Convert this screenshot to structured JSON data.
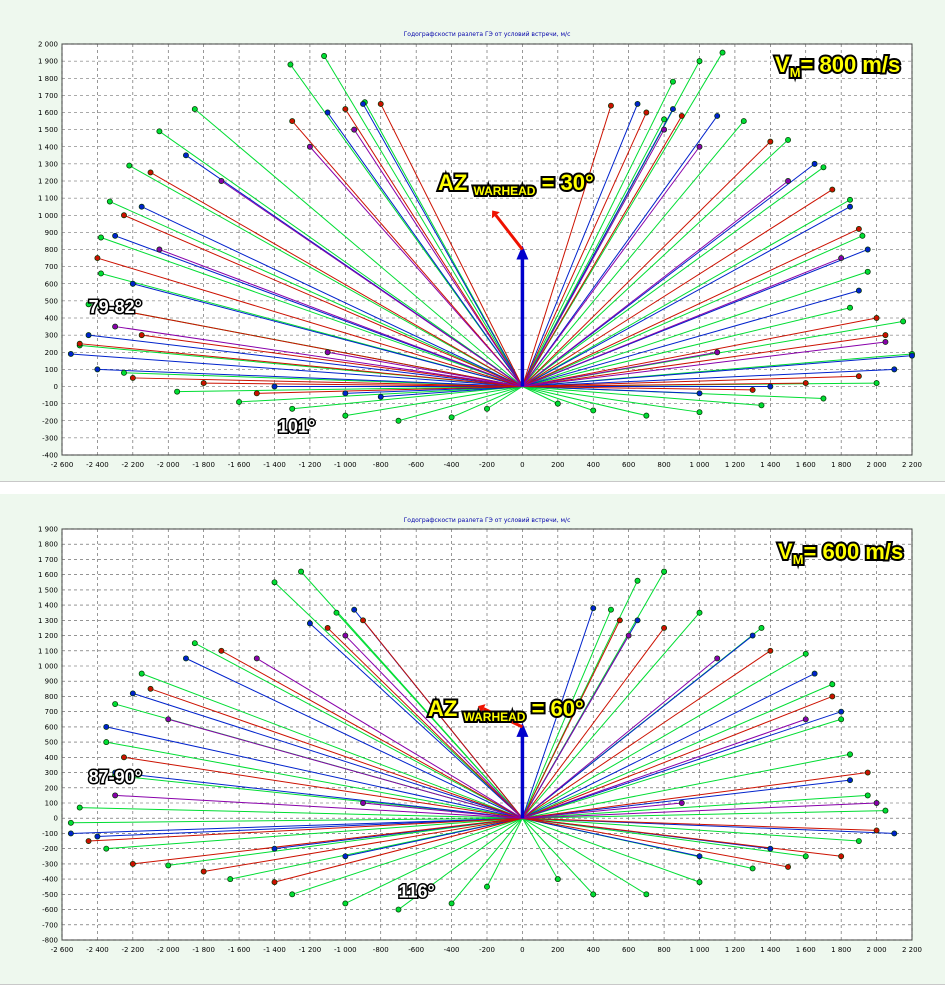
{
  "chart_data": [
    {
      "type": "scatter",
      "title": "Годографскости разлета ГЭ от условий встречи, м/с",
      "xlim": [
        -2600,
        2200
      ],
      "ylim": [
        -400,
        2000
      ],
      "xticks": [
        -2600,
        -2400,
        -2200,
        -2000,
        -1800,
        -1600,
        -1400,
        -1200,
        -1000,
        -800,
        -600,
        -400,
        -200,
        0,
        200,
        400,
        600,
        800,
        1000,
        1200,
        1400,
        1600,
        1800,
        2000,
        2200
      ],
      "yticks": [
        -400,
        -300,
        -200,
        -100,
        0,
        100,
        200,
        300,
        400,
        500,
        600,
        700,
        800,
        900,
        1000,
        1100,
        1200,
        1300,
        1400,
        1500,
        1600,
        1700,
        1800,
        1900,
        2000
      ],
      "grid": true,
      "velocity_label": {
        "prefix": "V",
        "sub": "M",
        "text": "= 800 m/s"
      },
      "azimuth_label": {
        "prefix": "AZ ",
        "sub": "WARHEAD",
        "text": " = 30°"
      },
      "angle_labels": [
        {
          "text": "79-82°",
          "x": -2450,
          "y": 430
        },
        {
          "text": "101°",
          "x": -1380,
          "y": -270
        }
      ],
      "velocity_vector": {
        "x": 0,
        "y": 800,
        "color": "#0000cc"
      },
      "azimuth_vector": {
        "x": -150,
        "y": 1000,
        "from_y": 800,
        "color": "#ee1100"
      },
      "series": [
        {
          "color": "#00dd33",
          "values": [
            [
              -1310,
              1880
            ],
            [
              -1120,
              1930
            ],
            [
              -890,
              1660
            ],
            [
              -1850,
              1620
            ],
            [
              -2050,
              1490
            ],
            [
              -2220,
              1290
            ],
            [
              -2330,
              1080
            ],
            [
              -2380,
              870
            ],
            [
              -2380,
              660
            ],
            [
              -2450,
              480
            ],
            [
              -2500,
              240
            ],
            [
              -2250,
              80
            ],
            [
              -1950,
              -30
            ],
            [
              -1600,
              -90
            ],
            [
              -1300,
              -130
            ],
            [
              -1000,
              -170
            ],
            [
              -700,
              -200
            ],
            [
              -400,
              -180
            ],
            [
              -200,
              -130
            ],
            [
              1130,
              1950
            ],
            [
              1000,
              1900
            ],
            [
              850,
              1780
            ],
            [
              800,
              1560
            ],
            [
              1250,
              1550
            ],
            [
              1500,
              1440
            ],
            [
              1700,
              1280
            ],
            [
              1850,
              1090
            ],
            [
              1920,
              880
            ],
            [
              1950,
              670
            ],
            [
              1850,
              460
            ],
            [
              2150,
              380
            ],
            [
              2200,
              190
            ],
            [
              2000,
              20
            ],
            [
              1700,
              -70
            ],
            [
              1350,
              -110
            ],
            [
              1000,
              -150
            ],
            [
              700,
              -170
            ],
            [
              400,
              -140
            ],
            [
              200,
              -100
            ]
          ]
        },
        {
          "color": "#0022cc",
          "values": [
            [
              -1100,
              1600
            ],
            [
              -900,
              1650
            ],
            [
              -1900,
              1350
            ],
            [
              -2150,
              1050
            ],
            [
              -2300,
              880
            ],
            [
              -2200,
              600
            ],
            [
              -2450,
              300
            ],
            [
              -2550,
              190
            ],
            [
              -2400,
              100
            ],
            [
              -1400,
              0
            ],
            [
              -1000,
              -40
            ],
            [
              -800,
              -60
            ],
            [
              650,
              1650
            ],
            [
              850,
              1620
            ],
            [
              1100,
              1580
            ],
            [
              1650,
              1300
            ],
            [
              1850,
              1050
            ],
            [
              1950,
              800
            ],
            [
              1900,
              560
            ],
            [
              2200,
              180
            ],
            [
              2100,
              100
            ],
            [
              1400,
              0
            ],
            [
              1000,
              -40
            ]
          ]
        },
        {
          "color": "#cc1100",
          "values": [
            [
              -800,
              1650
            ],
            [
              -1000,
              1620
            ],
            [
              -1300,
              1550
            ],
            [
              -2100,
              1250
            ],
            [
              -2250,
              1000
            ],
            [
              -2400,
              750
            ],
            [
              -2300,
              450
            ],
            [
              -2500,
              250
            ],
            [
              -2150,
              300
            ],
            [
              -2200,
              50
            ],
            [
              -1800,
              20
            ],
            [
              -1500,
              -40
            ],
            [
              500,
              1640
            ],
            [
              700,
              1600
            ],
            [
              900,
              1580
            ],
            [
              1400,
              1430
            ],
            [
              1750,
              1150
            ],
            [
              1900,
              920
            ],
            [
              2000,
              400
            ],
            [
              2050,
              300
            ],
            [
              1900,
              60
            ],
            [
              1600,
              20
            ],
            [
              1300,
              -20
            ]
          ]
        },
        {
          "color": "#8800aa",
          "values": [
            [
              -950,
              1500
            ],
            [
              -1200,
              1400
            ],
            [
              -1700,
              1200
            ],
            [
              -2050,
              800
            ],
            [
              -2300,
              350
            ],
            [
              -1100,
              200
            ],
            [
              800,
              1500
            ],
            [
              1000,
              1400
            ],
            [
              1500,
              1200
            ],
            [
              1800,
              750
            ],
            [
              2050,
              260
            ],
            [
              1100,
              200
            ]
          ]
        }
      ]
    },
    {
      "type": "scatter",
      "title": "Годографскости разлета ГЭ от условий встречи, м/с",
      "xlim": [
        -2600,
        2200
      ],
      "ylim": [
        -800,
        1900
      ],
      "xticks": [
        -2600,
        -2400,
        -2200,
        -2000,
        -1800,
        -1600,
        -1400,
        -1200,
        -1000,
        -800,
        -600,
        -400,
        -200,
        0,
        200,
        400,
        600,
        800,
        1000,
        1200,
        1400,
        1600,
        1800,
        2000,
        2200
      ],
      "yticks": [
        -800,
        -700,
        -600,
        -500,
        -400,
        -300,
        -200,
        -100,
        0,
        100,
        200,
        300,
        400,
        500,
        600,
        700,
        800,
        900,
        1000,
        1100,
        1200,
        1300,
        1400,
        1500,
        1600,
        1700,
        1800,
        1900
      ],
      "grid": true,
      "velocity_label": {
        "prefix": "V",
        "sub": "M",
        "text": "= 600 m/s"
      },
      "azimuth_label": {
        "prefix": "AZ ",
        "sub": "WARHEAD",
        "text": " = 60°"
      },
      "angle_labels": [
        {
          "text": "87-90°",
          "x": -2450,
          "y": 230
        },
        {
          "text": "116°",
          "x": -700,
          "y": -520
        }
      ],
      "velocity_vector": {
        "x": 0,
        "y": 600,
        "color": "#0000cc"
      },
      "azimuth_vector": {
        "x": -220,
        "y": 720,
        "from_y": 600,
        "color": "#ee1100"
      },
      "series": [
        {
          "color": "#00dd33",
          "values": [
            [
              -1400,
              1550
            ],
            [
              -1250,
              1620
            ],
            [
              -1050,
              1350
            ],
            [
              -1850,
              1150
            ],
            [
              -2150,
              950
            ],
            [
              -2300,
              750
            ],
            [
              -2350,
              500
            ],
            [
              -2300,
              280
            ],
            [
              -2500,
              70
            ],
            [
              -2550,
              -30
            ],
            [
              -2350,
              -200
            ],
            [
              -2000,
              -310
            ],
            [
              -1650,
              -400
            ],
            [
              -1300,
              -500
            ],
            [
              -1000,
              -560
            ],
            [
              -700,
              -600
            ],
            [
              -400,
              -560
            ],
            [
              -200,
              -450
            ],
            [
              800,
              1620
            ],
            [
              650,
              1560
            ],
            [
              500,
              1370
            ],
            [
              1000,
              1350
            ],
            [
              1350,
              1250
            ],
            [
              1600,
              1080
            ],
            [
              1750,
              880
            ],
            [
              1800,
              650
            ],
            [
              1850,
              420
            ],
            [
              1950,
              150
            ],
            [
              2050,
              50
            ],
            [
              1900,
              -150
            ],
            [
              1600,
              -250
            ],
            [
              1300,
              -330
            ],
            [
              1000,
              -420
            ],
            [
              700,
              -500
            ],
            [
              400,
              -500
            ],
            [
              200,
              -400
            ]
          ]
        },
        {
          "color": "#0022cc",
          "values": [
            [
              -950,
              1370
            ],
            [
              -1200,
              1280
            ],
            [
              -1900,
              1050
            ],
            [
              -2200,
              820
            ],
            [
              -2350,
              600
            ],
            [
              -2300,
              300
            ],
            [
              -2550,
              -100
            ],
            [
              -2400,
              -120
            ],
            [
              -1400,
              -200
            ],
            [
              -1000,
              -250
            ],
            [
              400,
              1380
            ],
            [
              650,
              1300
            ],
            [
              1300,
              1200
            ],
            [
              1650,
              950
            ],
            [
              1800,
              700
            ],
            [
              1850,
              250
            ],
            [
              2100,
              -100
            ],
            [
              1400,
              -200
            ],
            [
              1000,
              -250
            ]
          ]
        },
        {
          "color": "#cc1100",
          "values": [
            [
              -900,
              1300
            ],
            [
              -1100,
              1250
            ],
            [
              -1700,
              1100
            ],
            [
              -2100,
              850
            ],
            [
              -2250,
              400
            ],
            [
              -2450,
              -150
            ],
            [
              -2200,
              -300
            ],
            [
              -1800,
              -350
            ],
            [
              -1400,
              -420
            ],
            [
              550,
              1300
            ],
            [
              800,
              1250
            ],
            [
              1400,
              1100
            ],
            [
              1750,
              800
            ],
            [
              1950,
              300
            ],
            [
              2000,
              -80
            ],
            [
              1800,
              -250
            ],
            [
              1500,
              -320
            ]
          ]
        },
        {
          "color": "#8800aa",
          "values": [
            [
              -1000,
              1200
            ],
            [
              -1500,
              1050
            ],
            [
              -2000,
              650
            ],
            [
              -2300,
              150
            ],
            [
              -900,
              100
            ],
            [
              600,
              1200
            ],
            [
              1100,
              1050
            ],
            [
              1600,
              650
            ],
            [
              2000,
              100
            ],
            [
              900,
              100
            ]
          ]
        }
      ]
    }
  ]
}
